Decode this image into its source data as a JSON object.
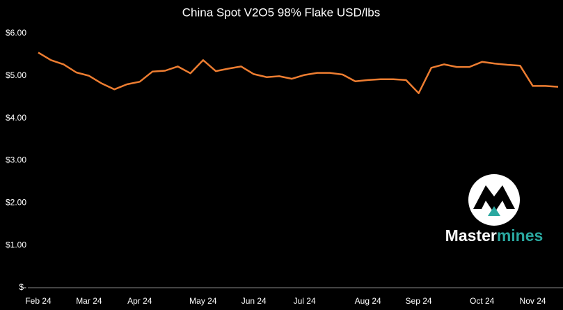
{
  "chart_data": {
    "type": "line",
    "title": "China Spot V2O5 98% Flake USD/lbs",
    "categories": [
      "Feb 24",
      null,
      null,
      null,
      "Mar 24",
      null,
      null,
      null,
      "Apr 24",
      null,
      null,
      null,
      null,
      "May 24",
      null,
      null,
      null,
      "Jun 24",
      null,
      null,
      null,
      "Jul 24",
      null,
      null,
      null,
      null,
      "Aug 24",
      null,
      null,
      null,
      "Sep 24",
      null,
      null,
      null,
      null,
      "Oct 24",
      null,
      null,
      null,
      "Nov 24",
      null,
      null
    ],
    "values": [
      5.55,
      5.37,
      5.27,
      5.08,
      5.0,
      4.82,
      4.68,
      4.8,
      4.86,
      5.1,
      5.12,
      5.22,
      5.06,
      5.37,
      5.11,
      5.17,
      5.22,
      5.04,
      4.97,
      4.99,
      4.93,
      5.02,
      5.07,
      5.07,
      5.03,
      4.87,
      4.9,
      4.92,
      4.92,
      4.9,
      4.59,
      5.19,
      5.27,
      5.21,
      5.21,
      5.33,
      5.29,
      5.26,
      5.24,
      4.76,
      4.76,
      4.74
    ],
    "color": "#ed7d31",
    "ylim": [
      0,
      6
    ],
    "yticks": [
      {
        "value": 0,
        "label": "$-"
      },
      {
        "value": 1,
        "label": "$1.00"
      },
      {
        "value": 2,
        "label": "$2.00"
      },
      {
        "value": 3,
        "label": "$3.00"
      },
      {
        "value": 4,
        "label": "$4.00"
      },
      {
        "value": 5,
        "label": "$5.00"
      },
      {
        "value": 6,
        "label": "$6.00"
      }
    ],
    "grid": false,
    "logo": [
      "Master",
      "mines"
    ]
  }
}
